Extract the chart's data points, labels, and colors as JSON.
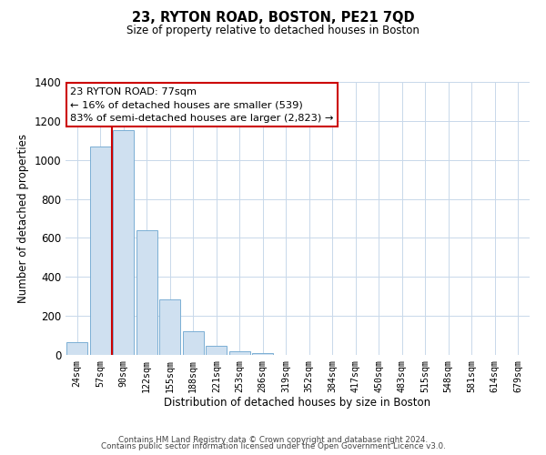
{
  "title": "23, RYTON ROAD, BOSTON, PE21 7QD",
  "subtitle": "Size of property relative to detached houses in Boston",
  "xlabel": "Distribution of detached houses by size in Boston",
  "ylabel": "Number of detached properties",
  "bar_labels": [
    "24sqm",
    "57sqm",
    "90sqm",
    "122sqm",
    "155sqm",
    "188sqm",
    "221sqm",
    "253sqm",
    "286sqm",
    "319sqm",
    "352sqm",
    "384sqm",
    "417sqm",
    "450sqm",
    "483sqm",
    "515sqm",
    "548sqm",
    "581sqm",
    "614sqm",
    "679sqm"
  ],
  "bar_values": [
    65,
    1070,
    1155,
    640,
    285,
    120,
    48,
    20,
    8,
    2,
    0,
    0,
    0,
    0,
    0,
    0,
    0,
    0,
    0,
    0
  ],
  "bar_color": "#cfe0f0",
  "bar_edge_color": "#7bafd4",
  "property_line_color": "#cc0000",
  "property_line_x": 1.5,
  "ylim": [
    0,
    1400
  ],
  "yticks": [
    0,
    200,
    400,
    600,
    800,
    1000,
    1200,
    1400
  ],
  "ann_line1": "23 RYTON ROAD: 77sqm",
  "ann_line2": "← 16% of detached houses are smaller (539)",
  "ann_line3": "83% of semi-detached houses are larger (2,823) →",
  "footer1": "Contains HM Land Registry data © Crown copyright and database right 2024.",
  "footer2": "Contains public sector information licensed under the Open Government Licence v3.0.",
  "background_color": "#ffffff",
  "grid_color": "#c8d8ea"
}
